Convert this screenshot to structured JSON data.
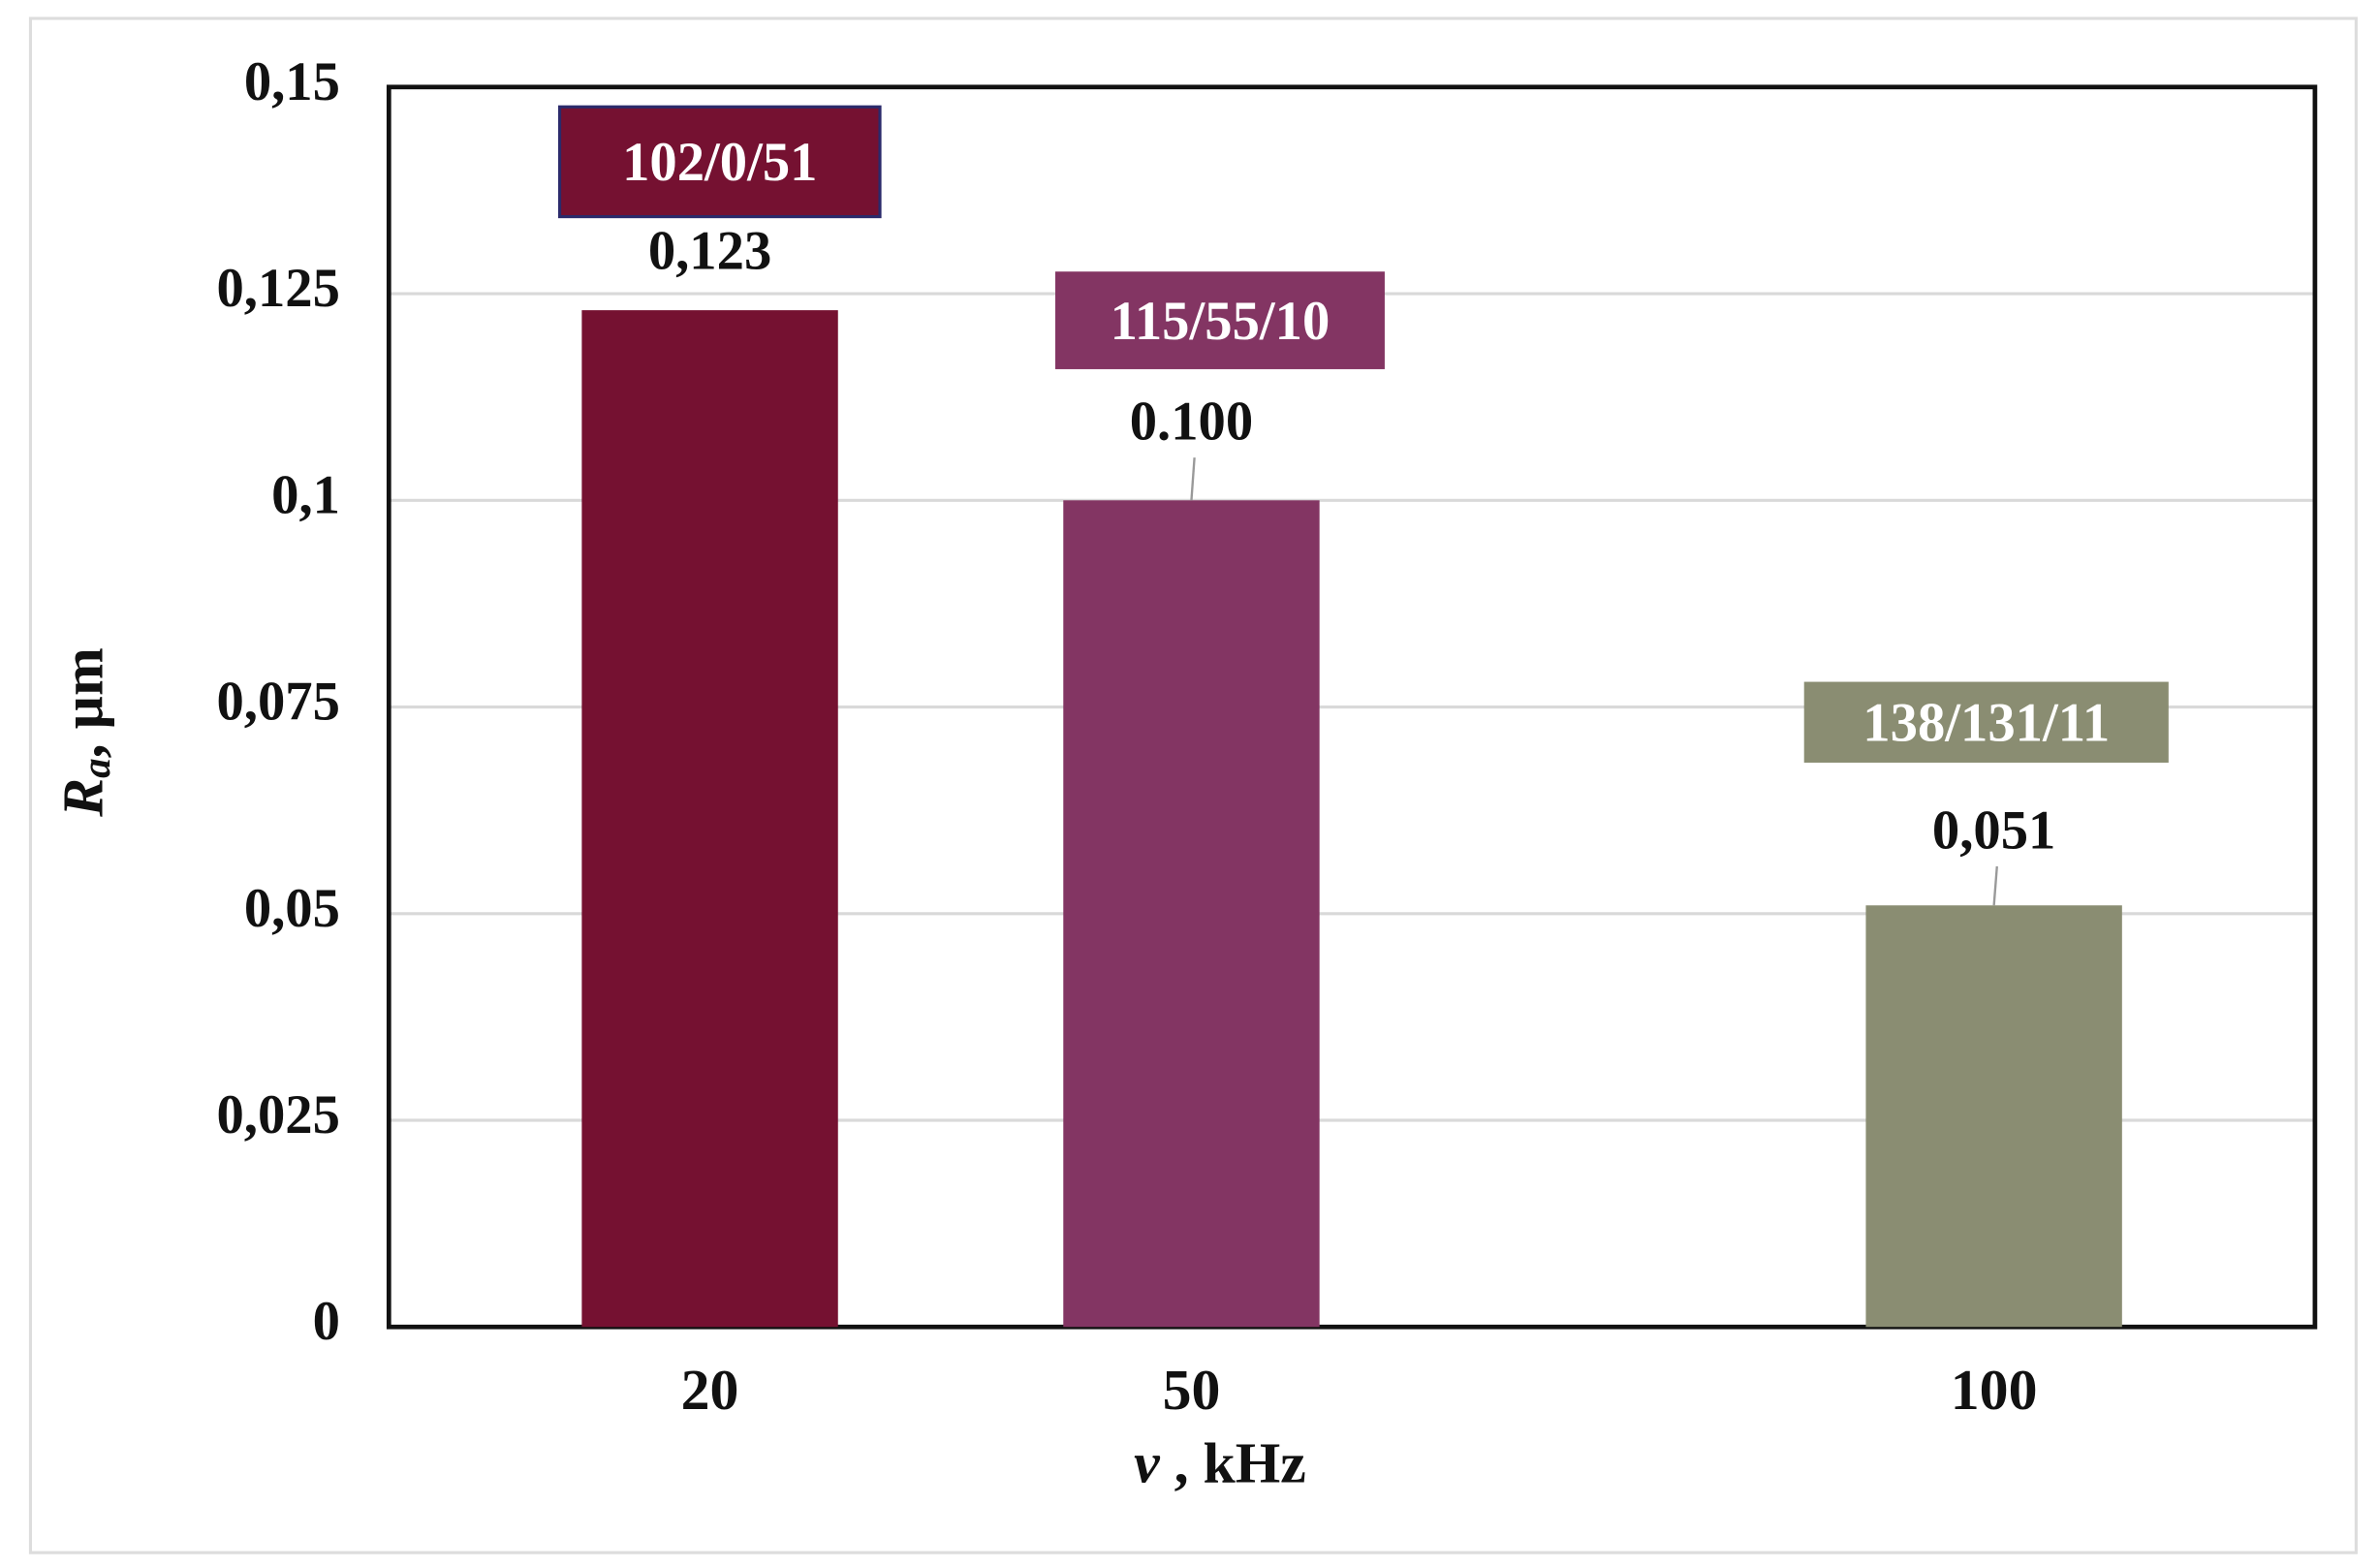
{
  "chart_data": {
    "type": "bar",
    "ylabel": [
      "R",
      "a",
      ", µm"
    ],
    "xlabel": [
      "ν",
      " , kHz"
    ],
    "x": [
      20,
      50,
      100
    ],
    "values": [
      0.123,
      0.1,
      0.051
    ],
    "value_labels": [
      "0,123",
      "0.100",
      "0,051"
    ],
    "colors": [
      "#751131",
      "#833563",
      "#8a8d72"
    ],
    "annotations": [
      "102/0/51",
      "115/55/10",
      "138/131/11"
    ],
    "xlim": [
      0,
      120
    ],
    "xticks": [
      20,
      50,
      100
    ],
    "ylim": [
      0,
      0.15
    ],
    "yticks": [
      0,
      {
        "value": 0.025,
        "label": "0,025"
      },
      {
        "value": 0.05,
        "label": "0,05"
      },
      {
        "value": 0.075,
        "label": "0,075"
      },
      {
        "value": 0.1,
        "label": "0,1"
      },
      {
        "value": 0.125,
        "label": "0,125"
      },
      {
        "value": 0.15,
        "label": "0,15"
      }
    ],
    "grid": true
  }
}
